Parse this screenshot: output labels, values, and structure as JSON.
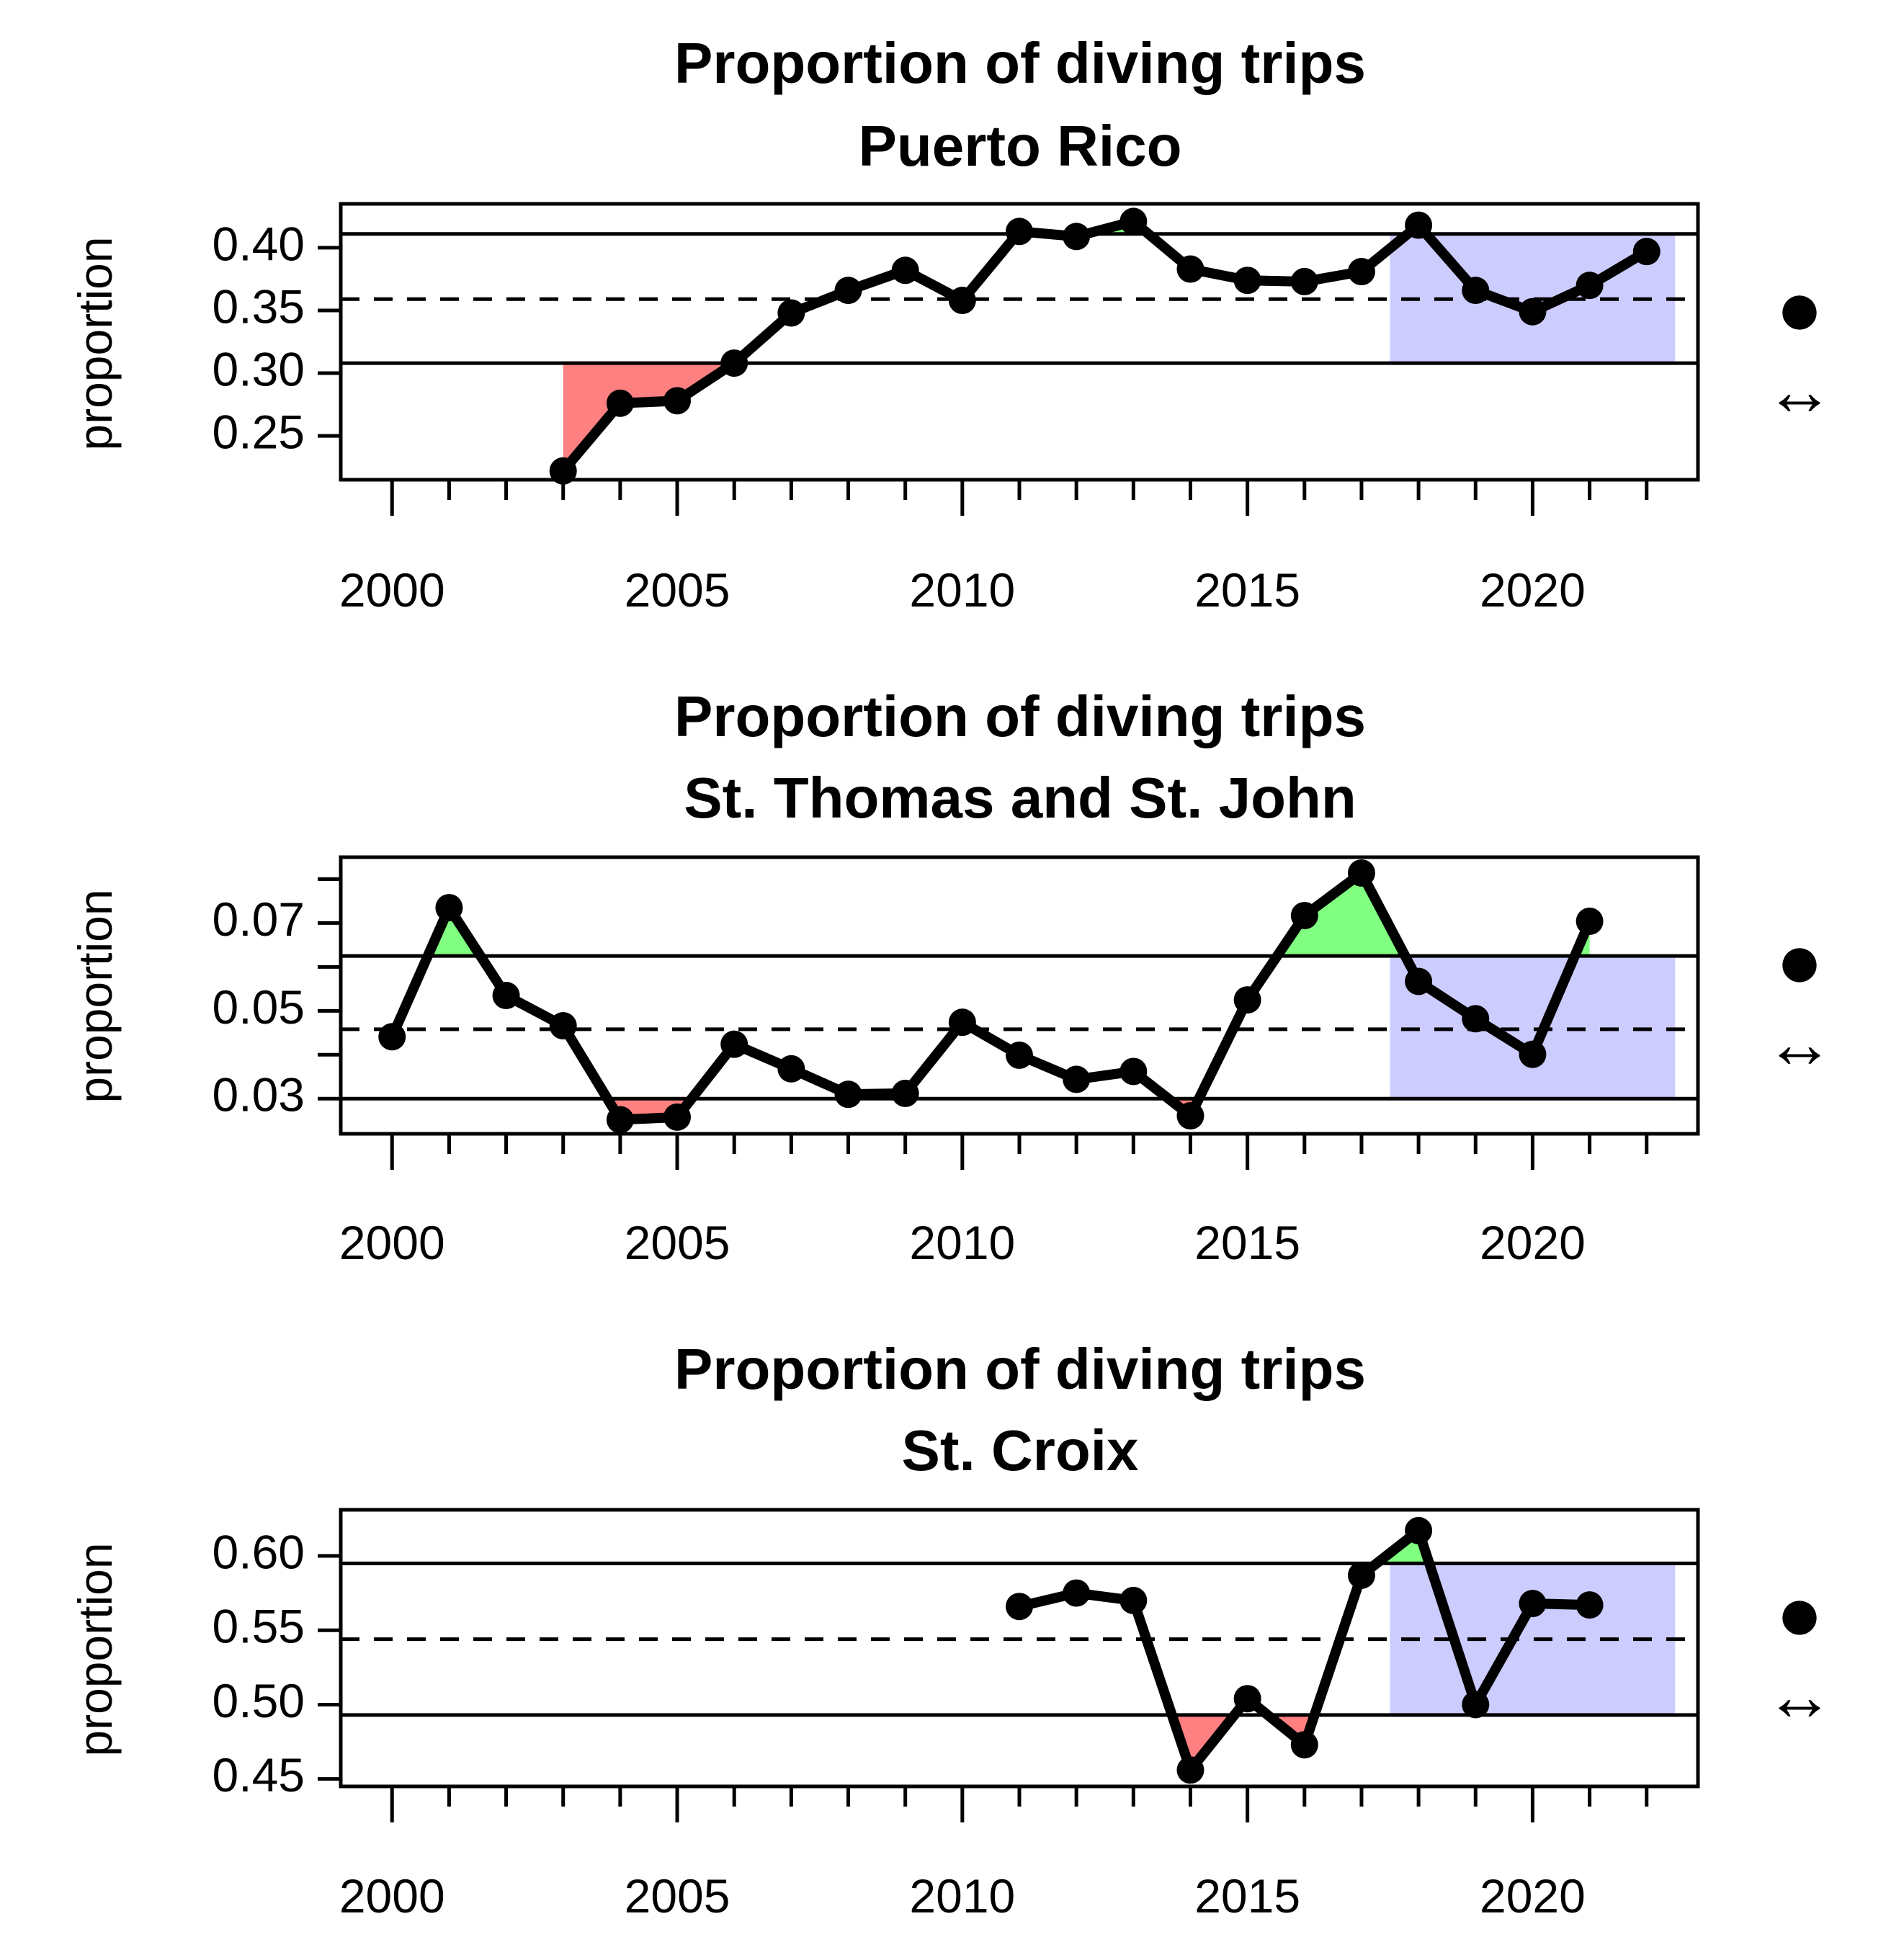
{
  "chart_data": [
    {
      "type": "line",
      "title": "Proportion of diving trips",
      "subtitle": "Puerto Rico",
      "xlabel": "",
      "ylabel": "proportion",
      "xlim": [
        1999.1,
        2022.9
      ],
      "ylim": [
        0.215,
        0.435
      ],
      "xticks": [
        2000,
        2005,
        2010,
        2015,
        2020
      ],
      "yticks": [
        0.25,
        0.3,
        0.35,
        0.4
      ],
      "ytick_labels": [
        "0.25",
        "0.30",
        "0.35",
        "0.40"
      ],
      "mean": 0.359,
      "upper": 0.411,
      "lower": 0.308,
      "recent_window": [
        2017.5,
        2022.5
      ],
      "x": [
        2003,
        2004,
        2005,
        2006,
        2007,
        2008,
        2009,
        2010,
        2011,
        2012,
        2013,
        2014,
        2015,
        2016,
        2017,
        2018,
        2019,
        2020,
        2021,
        2022
      ],
      "y": [
        0.222,
        0.276,
        0.278,
        0.308,
        0.348,
        0.366,
        0.382,
        0.358,
        0.413,
        0.409,
        0.421,
        0.383,
        0.374,
        0.373,
        0.381,
        0.418,
        0.366,
        0.349,
        0.37,
        0.397
      ],
      "mean_trend_symbol": "●",
      "slope_trend_symbol": "↔"
    },
    {
      "type": "line",
      "title": "Proportion of diving trips",
      "subtitle": "St. Thomas and St. John",
      "xlabel": "",
      "ylabel": "proportion",
      "xlim": [
        1999.1,
        2022.9
      ],
      "ylim": [
        0.022,
        0.085
      ],
      "xticks": [
        2000,
        2005,
        2010,
        2015,
        2020
      ],
      "yticks": [
        0.03,
        0.04,
        0.05,
        0.06,
        0.07,
        0.08
      ],
      "ytick_labels": [
        "0.03",
        "",
        "0.05",
        "",
        "0.07",
        ""
      ],
      "mean": 0.0458,
      "upper": 0.0625,
      "lower": 0.03,
      "recent_window": [
        2017.5,
        2022.5
      ],
      "x": [
        2000,
        2001,
        2002,
        2003,
        2004,
        2005,
        2006,
        2007,
        2008,
        2009,
        2010,
        2011,
        2012,
        2013,
        2014,
        2015,
        2016,
        2017,
        2018,
        2019,
        2020,
        2021
      ],
      "y": [
        0.0441,
        0.0735,
        0.0535,
        0.0466,
        0.0252,
        0.0258,
        0.0424,
        0.0368,
        0.031,
        0.0312,
        0.0474,
        0.0399,
        0.0344,
        0.0362,
        0.0261,
        0.0525,
        0.0717,
        0.0814,
        0.0567,
        0.0482,
        0.0401,
        0.0704
      ],
      "mean_trend_symbol": "●",
      "slope_trend_symbol": "↔"
    },
    {
      "type": "line",
      "title": "Proportion of diving trips",
      "subtitle": "St. Croix",
      "xlabel": "",
      "ylabel": "proportion",
      "xlim": [
        1999.1,
        2022.9
      ],
      "ylim": [
        0.445,
        0.631
      ],
      "xticks": [
        2000,
        2005,
        2010,
        2015,
        2020
      ],
      "yticks": [
        0.45,
        0.5,
        0.55,
        0.6
      ],
      "ytick_labels": [
        "0.45",
        "0.50",
        "0.55",
        "0.60"
      ],
      "mean": 0.544,
      "upper": 0.595,
      "lower": 0.493,
      "recent_window": [
        2017.5,
        2022.5
      ],
      "x": [
        2011,
        2012,
        2013,
        2014,
        2015,
        2016,
        2017,
        2018,
        2019,
        2020,
        2021
      ],
      "y": [
        0.566,
        0.575,
        0.57,
        0.456,
        0.504,
        0.473,
        0.587,
        0.617,
        0.5,
        0.568,
        0.567
      ],
      "mean_trend_symbol": "●",
      "slope_trend_symbol": "↔"
    }
  ],
  "colors": {
    "above": "#80ff80",
    "below": "#ff8080",
    "recent": "#ccccff",
    "line": "#000000"
  }
}
